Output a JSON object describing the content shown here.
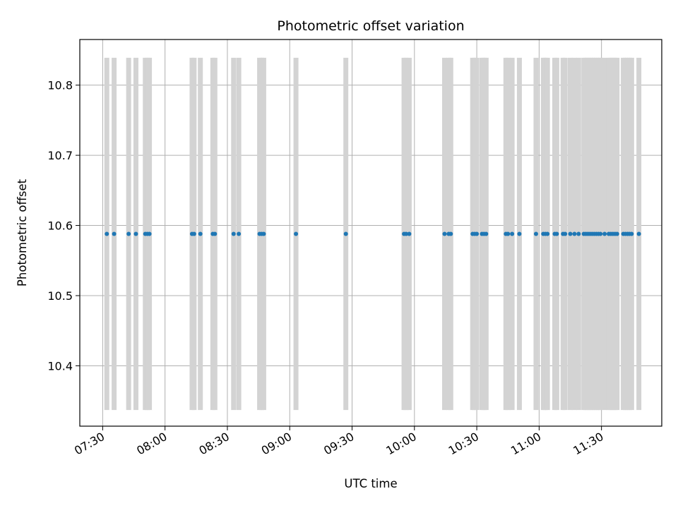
{
  "chart_data": {
    "type": "scatter",
    "title": "Photometric offset variation",
    "xlabel": "UTC time",
    "ylabel": "Photometric offset",
    "x_tick_labels": [
      "07:30",
      "08:00",
      "08:30",
      "09:00",
      "09:30",
      "10:00",
      "10:30",
      "11:00",
      "11:30"
    ],
    "y_tick_labels": [
      "10.4",
      "10.5",
      "10.6",
      "10.7",
      "10.8"
    ],
    "x_ticks_minutes": [
      450,
      480,
      510,
      540,
      570,
      600,
      630,
      660,
      690
    ],
    "y_ticks": [
      10.4,
      10.5,
      10.6,
      10.7,
      10.8
    ],
    "xlim_minutes": [
      439,
      719
    ],
    "ylim": [
      10.314,
      10.865
    ],
    "grid": true,
    "series": [
      {
        "marker_color": "#1f77b4",
        "errorbar_color": "#d3d3d3",
        "error_range": [
          10.337,
          10.839
        ],
        "y_value": 10.588,
        "x_minutes": [
          452,
          455.5,
          462.5,
          466,
          470.5,
          471.5,
          472.5,
          493,
          494,
          497,
          503,
          504,
          513,
          515.5,
          525.5,
          526.5,
          527.5,
          543,
          567,
          595,
          596,
          597.5,
          614.5,
          616.5,
          617.5,
          628,
          629,
          630,
          632.5,
          633.5,
          634.5,
          644,
          645,
          647,
          650.5,
          658.5,
          662,
          663,
          664,
          667.5,
          668.5,
          671.5,
          672.5,
          675,
          677,
          679,
          681.5,
          682.5,
          683.5,
          684.5,
          685.5,
          686.5,
          687.5,
          688.5,
          689.5,
          691.5,
          693.5,
          694.5,
          695.5,
          696.5,
          697.5,
          700.5,
          701.5,
          702.5,
          703.5,
          704.5,
          708
        ]
      }
    ]
  }
}
